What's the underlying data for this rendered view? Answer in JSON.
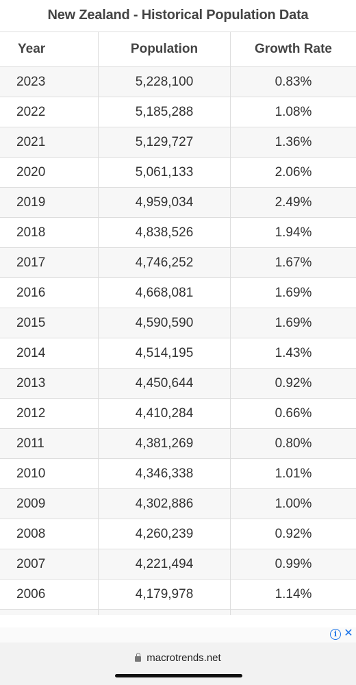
{
  "page": {
    "title": "New Zealand - Historical Population Data"
  },
  "table": {
    "headers": {
      "year": "Year",
      "population": "Population",
      "growth_rate": "Growth Rate"
    },
    "rows": [
      {
        "year": "2023",
        "population": "5,228,100",
        "growth_rate": "0.83%"
      },
      {
        "year": "2022",
        "population": "5,185,288",
        "growth_rate": "1.08%"
      },
      {
        "year": "2021",
        "population": "5,129,727",
        "growth_rate": "1.36%"
      },
      {
        "year": "2020",
        "population": "5,061,133",
        "growth_rate": "2.06%"
      },
      {
        "year": "2019",
        "population": "4,959,034",
        "growth_rate": "2.49%"
      },
      {
        "year": "2018",
        "population": "4,838,526",
        "growth_rate": "1.94%"
      },
      {
        "year": "2017",
        "population": "4,746,252",
        "growth_rate": "1.67%"
      },
      {
        "year": "2016",
        "population": "4,668,081",
        "growth_rate": "1.69%"
      },
      {
        "year": "2015",
        "population": "4,590,590",
        "growth_rate": "1.69%"
      },
      {
        "year": "2014",
        "population": "4,514,195",
        "growth_rate": "1.43%"
      },
      {
        "year": "2013",
        "population": "4,450,644",
        "growth_rate": "0.92%"
      },
      {
        "year": "2012",
        "population": "4,410,284",
        "growth_rate": "0.66%"
      },
      {
        "year": "2011",
        "population": "4,381,269",
        "growth_rate": "0.80%"
      },
      {
        "year": "2010",
        "population": "4,346,338",
        "growth_rate": "1.01%"
      },
      {
        "year": "2009",
        "population": "4,302,886",
        "growth_rate": "1.00%"
      },
      {
        "year": "2008",
        "population": "4,260,239",
        "growth_rate": "0.92%"
      },
      {
        "year": "2007",
        "population": "4,221,494",
        "growth_rate": "0.99%"
      },
      {
        "year": "2006",
        "population": "4,179,978",
        "growth_rate": "1.14%"
      }
    ]
  },
  "ad": {
    "info_icon": "info-icon",
    "close_icon": "close-icon",
    "accent_color": "#1a73e8"
  },
  "browser": {
    "url": "macrotrends.net",
    "lock_icon": "lock-icon"
  }
}
